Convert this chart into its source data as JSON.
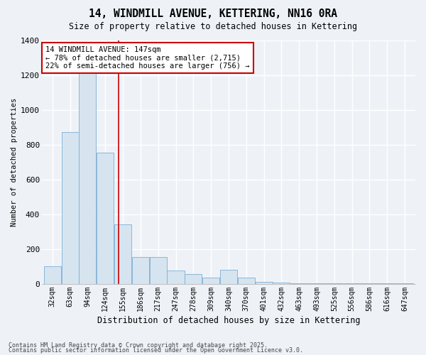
{
  "title": "14, WINDMILL AVENUE, KETTERING, NN16 0RA",
  "subtitle": "Size of property relative to detached houses in Kettering",
  "xlabel": "Distribution of detached houses by size in Kettering",
  "ylabel": "Number of detached properties",
  "categories": [
    "32sqm",
    "63sqm",
    "94sqm",
    "124sqm",
    "155sqm",
    "186sqm",
    "217sqm",
    "247sqm",
    "278sqm",
    "309sqm",
    "340sqm",
    "370sqm",
    "401sqm",
    "432sqm",
    "463sqm",
    "493sqm",
    "525sqm",
    "556sqm",
    "586sqm",
    "616sqm",
    "647sqm"
  ],
  "values": [
    100,
    870,
    1230,
    755,
    340,
    155,
    155,
    75,
    55,
    35,
    80,
    35,
    10,
    5,
    3,
    2,
    1,
    1,
    1,
    1,
    1
  ],
  "bar_color": "#d6e4f0",
  "bar_edge_color": "#7bafd4",
  "background_color": "#eef2f7",
  "grid_color": "#ffffff",
  "vline_color": "#cc0000",
  "vline_position": 3.74,
  "annotation_box_text": "14 WINDMILL AVENUE: 147sqm\n← 78% of detached houses are smaller (2,715)\n22% of semi-detached houses are larger (756) →",
  "annotation_box_color": "#cc0000",
  "annotation_fill": "#ffffff",
  "ylim": [
    0,
    1400
  ],
  "yticks": [
    0,
    200,
    400,
    600,
    800,
    1000,
    1200,
    1400
  ],
  "footer_line1": "Contains HM Land Registry data © Crown copyright and database right 2025.",
  "footer_line2": "Contains public sector information licensed under the Open Government Licence v3.0."
}
